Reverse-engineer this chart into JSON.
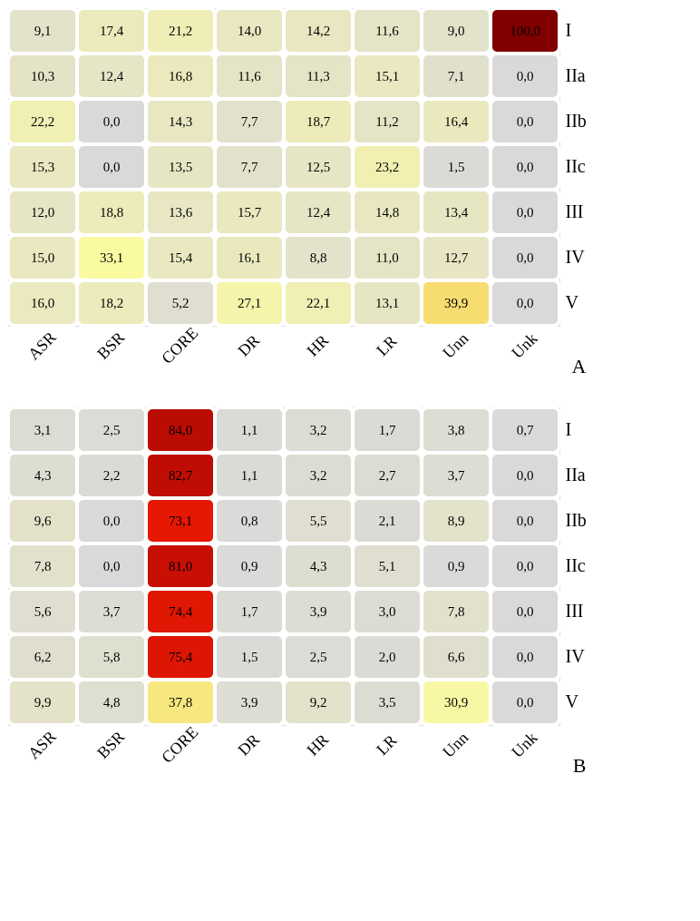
{
  "chart_data": [
    {
      "type": "heatmap",
      "categories": [
        "ASR",
        "BSR",
        "CORE",
        "DR",
        "HR",
        "LR",
        "Unn",
        "Unk"
      ],
      "y_categories": [
        "I",
        "IIa",
        "IIb",
        "IIc",
        "III",
        "IV",
        "V"
      ],
      "cells": [
        [
          9.1,
          17.4,
          21.2,
          14.0,
          14.2,
          11.6,
          9.0,
          100.0
        ],
        [
          10.3,
          12.4,
          16.8,
          11.6,
          11.3,
          15.1,
          7.1,
          0.0
        ],
        [
          22.2,
          0.0,
          14.3,
          7.7,
          18.7,
          11.2,
          16.4,
          0.0
        ],
        [
          15.3,
          0.0,
          13.5,
          7.7,
          12.5,
          23.2,
          1.5,
          0.0
        ],
        [
          12.0,
          18.8,
          13.6,
          15.7,
          12.4,
          14.8,
          13.4,
          0.0
        ],
        [
          15.0,
          33.1,
          15.4,
          16.1,
          8.8,
          11.0,
          12.7,
          0.0
        ],
        [
          16.0,
          18.2,
          5.2,
          27.1,
          22.1,
          13.1,
          39.9,
          0.0
        ]
      ],
      "cell_labels": [
        [
          "9,1",
          "17,4",
          "21,2",
          "14,0",
          "14,2",
          "11,6",
          "9,0",
          "100,0"
        ],
        [
          "10,3",
          "12,4",
          "16,8",
          "11,6",
          "11,3",
          "15,1",
          "7,1",
          "0,0"
        ],
        [
          "22,2",
          "0,0",
          "14,3",
          "7,7",
          "18,7",
          "11,2",
          "16,4",
          "0,0"
        ],
        [
          "15,3",
          "0,0",
          "13,5",
          "7,7",
          "12,5",
          "23,2",
          "1,5",
          "0,0"
        ],
        [
          "12,0",
          "18,8",
          "13,6",
          "15,7",
          "12,4",
          "14,8",
          "13,4",
          "0,0"
        ],
        [
          "15,0",
          "33,1",
          "15,4",
          "16,1",
          "8,8",
          "11,0",
          "12,7",
          "0,0"
        ],
        [
          "16,0",
          "18,2",
          "5,2",
          "27,1",
          "22,1",
          "13,1",
          "39,9",
          "0,0"
        ]
      ],
      "annotations": [
        "A"
      ]
    },
    {
      "type": "heatmap",
      "categories": [
        "ASR",
        "BSR",
        "CORE",
        "DR",
        "HR",
        "LR",
        "Unn",
        "Unk"
      ],
      "y_categories": [
        "I",
        "IIa",
        "IIb",
        "IIc",
        "III",
        "IV",
        "V"
      ],
      "cells": [
        [
          3.1,
          2.5,
          84.0,
          1.1,
          3.2,
          1.7,
          3.8,
          0.7
        ],
        [
          4.3,
          2.2,
          82.7,
          1.1,
          3.2,
          2.7,
          3.7,
          0.0
        ],
        [
          9.6,
          0.0,
          73.1,
          0.8,
          5.5,
          2.1,
          8.9,
          0.0
        ],
        [
          7.8,
          0.0,
          81.0,
          0.9,
          4.3,
          5.1,
          0.9,
          0.0
        ],
        [
          5.6,
          3.7,
          74.4,
          1.7,
          3.9,
          3.0,
          7.8,
          0.0
        ],
        [
          6.2,
          5.8,
          75.4,
          1.5,
          2.5,
          2.0,
          6.6,
          0.0
        ],
        [
          9.9,
          4.8,
          37.8,
          3.9,
          9.2,
          3.5,
          30.9,
          0.0
        ]
      ],
      "cell_labels": [
        [
          "3,1",
          "2,5",
          "84,0",
          "1,1",
          "3,2",
          "1,7",
          "3,8",
          "0,7"
        ],
        [
          "4,3",
          "2,2",
          "82,7",
          "1,1",
          "3,2",
          "2,7",
          "3,7",
          "0,0"
        ],
        [
          "9,6",
          "0,0",
          "73,1",
          "0,8",
          "5,5",
          "2,1",
          "8,9",
          "0,0"
        ],
        [
          "7,8",
          "0,0",
          "81,0",
          "0,9",
          "4,3",
          "5,1",
          "0,9",
          "0,0"
        ],
        [
          "5,6",
          "3,7",
          "74,4",
          "1,7",
          "3,9",
          "3,0",
          "7,8",
          "0,0"
        ],
        [
          "6,2",
          "5,8",
          "75,4",
          "1,5",
          "2,5",
          "2,0",
          "6,6",
          "0,0"
        ],
        [
          "9,9",
          "4,8",
          "37,8",
          "3,9",
          "9,2",
          "3,5",
          "30,9",
          "0,0"
        ]
      ],
      "annotations": [
        "B"
      ]
    }
  ]
}
